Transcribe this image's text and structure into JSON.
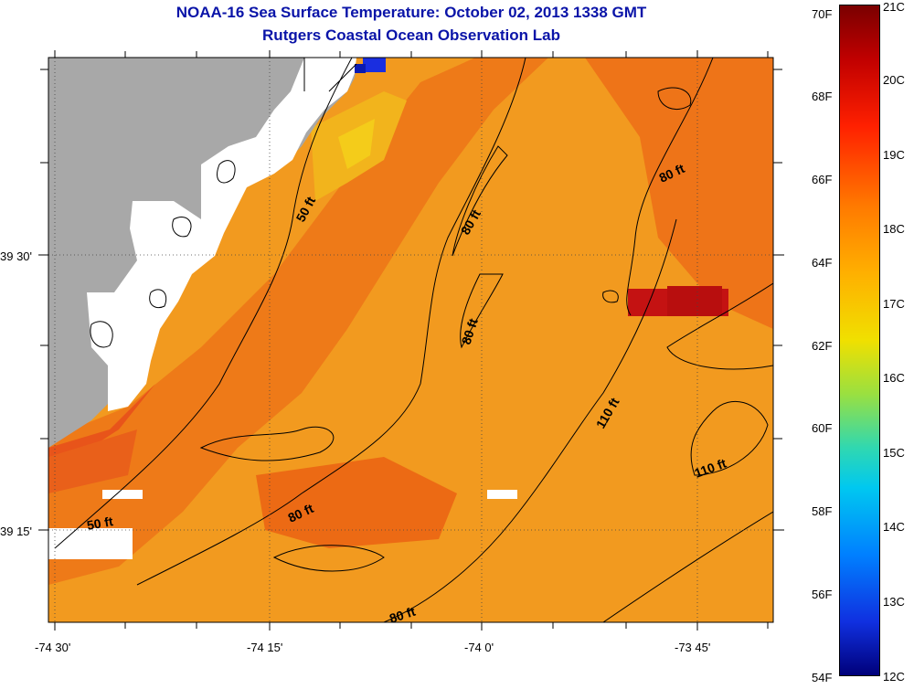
{
  "title": "NOAA-16 Sea Surface Temperature:  October 02, 2013 1338 GMT",
  "subtitle": "Rutgers Coastal Ocean Observation Lab",
  "x_ticks": [
    "-74 30'",
    "-74 15'",
    "-74 0'",
    "-73 45'"
  ],
  "y_ticks": [
    "39 30'",
    "39 15'"
  ],
  "contour_labels": [
    "50 ft",
    "80 ft",
    "80 ft",
    "80 ft",
    "110 ft",
    "110 ft",
    "80 ft",
    "50 ft",
    "80 ft"
  ],
  "colorbar": {
    "f_labels": [
      "70F",
      "68F",
      "66F",
      "64F",
      "62F",
      "60F",
      "58F",
      "56F",
      "54F"
    ],
    "c_labels": [
      "21C",
      "20C",
      "19C",
      "18C",
      "17C",
      "16C",
      "15C",
      "14C",
      "13C",
      "12C"
    ]
  },
  "colors": {
    "land": "#a8a8a8",
    "sea_base": "#f29a1f",
    "sea_warm": "#ec6a14",
    "hot_patch": "#c01010",
    "cool_patch": "#f4c81a",
    "title": "#0a14a8"
  }
}
